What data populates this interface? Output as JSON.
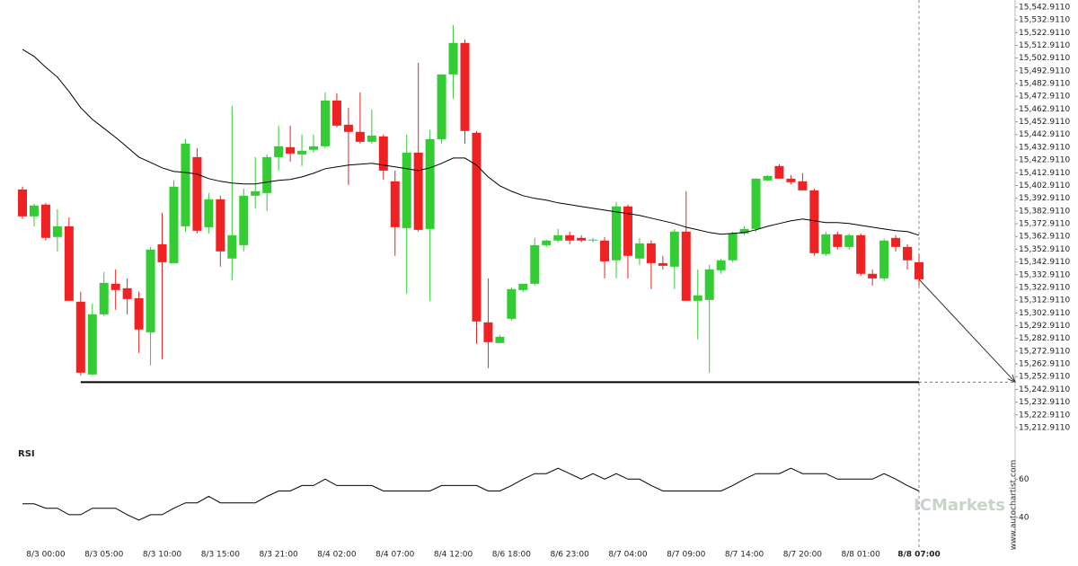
{
  "chart_data": [
    {
      "type": "candlestick",
      "categories": [
        null,
        null,
        "8/3 00:00",
        null,
        null,
        null,
        null,
        "8/3 05:00",
        null,
        null,
        null,
        null,
        "8/3 10:00",
        null,
        null,
        null,
        null,
        "8/3 15:00",
        null,
        null,
        null,
        null,
        "8/3 21:00",
        null,
        null,
        null,
        null,
        "8/4 02:00",
        null,
        null,
        null,
        null,
        "8/4 07:00",
        null,
        null,
        null,
        null,
        "8/4 12:00",
        null,
        null,
        null,
        null,
        "8/6 18:00",
        null,
        null,
        null,
        null,
        "8/6 23:00",
        null,
        null,
        null,
        null,
        "8/7 04:00",
        null,
        null,
        null,
        null,
        "8/7 09:00",
        null,
        null,
        null,
        null,
        "8/7 14:00",
        null,
        null,
        null,
        null,
        "8/7 20:00",
        null,
        null,
        null,
        null,
        "8/8 01:00",
        null,
        null,
        null,
        null,
        "8/8 07:00"
      ],
      "open": [
        15399.8,
        15378.7,
        15387.9,
        15362.5,
        15370.9,
        15311.7,
        15254.6,
        15301.8,
        15325.8,
        15322.3,
        15314.5,
        15287.7,
        15356.8,
        15342.0,
        15370.9,
        15425.2,
        15370.2,
        15392.1,
        15345.6,
        15356.1,
        15394.9,
        15397.0,
        15425.2,
        15433.0,
        15427.3,
        15430.9,
        15433.7,
        15469.6,
        15450.6,
        15445.0,
        15437.2,
        15441.4,
        15406.2,
        15369.5,
        15428.7,
        15368.8,
        15439.3,
        15490.1,
        15514.8,
        15444.3,
        15295.5,
        15279.3,
        15298.3,
        15320.9,
        15325.8,
        15356.1,
        15359.7,
        15363.9,
        15361.8,
        15359.7,
        15359.7,
        15344.2,
        15386.5,
        15345.6,
        15357.5,
        15342.0,
        15339.2,
        15366.7,
        15312.4,
        15313.1,
        15336.4,
        15344.2,
        15365.3,
        15368.8,
        15406.9,
        15418.2,
        15408.3,
        15406.2,
        15399.1,
        15349.1,
        15364.6,
        15354.7,
        15363.9,
        15333.6,
        15330.0,
        15361.8,
        15354.7,
        15342.7
      ],
      "high": [
        15402.0,
        15388.6,
        15389.3,
        15384.3,
        15378.0,
        15319.5,
        15310.3,
        15335.0,
        15337.1,
        15330.0,
        15319.5,
        15354.7,
        15381.5,
        15406.9,
        15439.3,
        15432.3,
        15397.0,
        15394.9,
        15465.4,
        15400.5,
        15425.2,
        15427.3,
        15449.9,
        15449.9,
        15442.9,
        15442.9,
        15476.0,
        15475.3,
        15464.0,
        15476.0,
        15462.6,
        15442.9,
        15414.6,
        15442.9,
        15499.3,
        15446.4,
        15490.1,
        15528.9,
        15517.6,
        15445.7,
        15330.0,
        15285.6,
        15323.0,
        15325.8,
        15361.8,
        15360.4,
        15368.8,
        15366.7,
        15363.9,
        15361.8,
        15362.5,
        15390.0,
        15387.9,
        15361.8,
        15359.7,
        15347.7,
        15368.8,
        15398.4,
        15337.1,
        15340.6,
        15345.6,
        15366.7,
        15370.9,
        15408.3,
        15411.1,
        15419.6,
        15411.1,
        15412.5,
        15400.5,
        15366.7,
        15366.7,
        15365.3,
        15365.3,
        15337.1,
        15361.1,
        15363.9,
        15356.8,
        15349.1
      ],
      "low": [
        15376.6,
        15370.9,
        15359.7,
        15351.2,
        15312.4,
        15253.9,
        15253.9,
        15300.4,
        15305.4,
        15301.8,
        15271.5,
        15261.7,
        15266.6,
        15342.0,
        15366.7,
        15365.3,
        15365.3,
        15339.2,
        15328.6,
        15351.2,
        15385.0,
        15382.9,
        15414.6,
        15421.7,
        15418.2,
        15428.7,
        15432.3,
        15448.5,
        15403.4,
        15435.8,
        15435.8,
        15407.6,
        15347.7,
        15318.1,
        15366.7,
        15312.4,
        15435.8,
        15471.1,
        15435.8,
        15278.6,
        15259.6,
        15279.3,
        15296.9,
        15319.5,
        15324.4,
        15354.7,
        15358.3,
        15356.8,
        15358.3,
        15358.3,
        15330.0,
        15330.0,
        15330.0,
        15340.6,
        15321.6,
        15337.1,
        15321.6,
        15312.4,
        15282.1,
        15256.0,
        15333.6,
        15342.7,
        15363.9,
        15366.7,
        15406.2,
        15408.3,
        15404.1,
        15400.5,
        15347.7,
        15347.7,
        15352.6,
        15352.6,
        15332.2,
        15324.4,
        15327.9,
        15351.2,
        15337.1,
        15324.4
      ],
      "close": [
        15378.7,
        15387.2,
        15361.8,
        15370.9,
        15312.4,
        15256.0,
        15301.8,
        15326.5,
        15320.9,
        15313.8,
        15289.9,
        15352.6,
        15342.7,
        15402.0,
        15435.8,
        15367.4,
        15392.1,
        15351.2,
        15363.9,
        15394.9,
        15398.4,
        15425.2,
        15433.7,
        15428.0,
        15430.2,
        15433.7,
        15469.6,
        15449.9,
        15445.0,
        15437.2,
        15442.1,
        15414.6,
        15370.2,
        15428.7,
        15368.1,
        15439.3,
        15490.1,
        15514.8,
        15445.7,
        15296.2,
        15280.0,
        15284.2,
        15321.6,
        15325.8,
        15356.1,
        15359.7,
        15363.9,
        15359.7,
        15359.7,
        15360.4,
        15343.4,
        15386.5,
        15347.7,
        15357.5,
        15342.0,
        15339.9,
        15366.7,
        15312.4,
        15316.7,
        15337.1,
        15344.2,
        15365.3,
        15368.8,
        15408.3,
        15410.4,
        15408.3,
        15405.5,
        15399.1,
        15349.8,
        15364.6,
        15354.7,
        15363.9,
        15333.6,
        15330.0,
        15359.7,
        15354.7,
        15344.2,
        15329.3
      ],
      "up_color": "#33cc33",
      "down_color": "#ee2222",
      "ma": {
        "color": "#000000",
        "values": [
          15509.8,
          15504.2,
          15495.7,
          15488.0,
          15476.7,
          15464.0,
          15454.8,
          15447.8,
          15440.7,
          15433.0,
          15425.2,
          15421.0,
          15416.8,
          15413.9,
          15413.2,
          15411.8,
          15408.3,
          15406.2,
          15404.8,
          15404.1,
          15404.1,
          15405.5,
          15406.9,
          15407.6,
          15409.7,
          15412.5,
          15416.1,
          15417.5,
          15418.9,
          15419.6,
          15420.3,
          15418.9,
          15417.5,
          15416.1,
          15414.6,
          15416.8,
          15420.3,
          15424.5,
          15424.5,
          15418.9,
          15409.7,
          15402.7,
          15398.4,
          15394.9,
          15392.8,
          15391.4,
          15389.3,
          15387.9,
          15386.4,
          15385.0,
          15383.6,
          15382.2,
          15380.8,
          15379.4,
          15377.3,
          15375.2,
          15373.1,
          15370.2,
          15368.1,
          15366.0,
          15364.6,
          15365.3,
          15366.0,
          15368.1,
          15370.9,
          15373.1,
          15375.2,
          15376.6,
          15375.2,
          15373.8,
          15373.8,
          15373.1,
          15371.6,
          15370.2,
          15368.8,
          15367.4,
          15366.7,
          15363.9
        ]
      },
      "support": 15248.6,
      "ylim": [
        15203,
        15548.5
      ],
      "yticks": [
        {
          "value": 15212.911,
          "label": "15,212.9110"
        },
        {
          "value": 15222.911,
          "label": "15,222.9110"
        },
        {
          "value": 15232.911,
          "label": "15,232.9110"
        },
        {
          "value": 15242.911,
          "label": "15,242.9110"
        },
        {
          "value": 15252.911,
          "label": "15,252.9110"
        },
        {
          "value": 15262.911,
          "label": "15,262.9110"
        },
        {
          "value": 15272.911,
          "label": "15,272.9110"
        },
        {
          "value": 15282.911,
          "label": "15,282.9110"
        },
        {
          "value": 15292.911,
          "label": "15,292.9110"
        },
        {
          "value": 15302.911,
          "label": "15,302.9110"
        },
        {
          "value": 15312.911,
          "label": "15,312.9110"
        },
        {
          "value": 15322.911,
          "label": "15,322.9110"
        },
        {
          "value": 15332.911,
          "label": "15,332.9110"
        },
        {
          "value": 15342.911,
          "label": "15,342.9110"
        },
        {
          "value": 15352.911,
          "label": "15,352.9110"
        },
        {
          "value": 15362.911,
          "label": "15,362.9110"
        },
        {
          "value": 15372.911,
          "label": "15,372.9110"
        },
        {
          "value": 15382.911,
          "label": "15,382.9110"
        },
        {
          "value": 15392.911,
          "label": "15,392.9110"
        },
        {
          "value": 15402.911,
          "label": "15,402.9110"
        },
        {
          "value": 15412.911,
          "label": "15,412.9110"
        },
        {
          "value": 15422.911,
          "label": "15,422.9110"
        },
        {
          "value": 15432.911,
          "label": "15,432.9110"
        },
        {
          "value": 15442.911,
          "label": "15,442.9110"
        },
        {
          "value": 15452.911,
          "label": "15,452.9110"
        },
        {
          "value": 15462.911,
          "label": "15,462.9110"
        },
        {
          "value": 15472.911,
          "label": "15,472.9110"
        },
        {
          "value": 15482.911,
          "label": "15,482.9110"
        },
        {
          "value": 15492.911,
          "label": "15,492.9110"
        },
        {
          "value": 15502.911,
          "label": "15,502.9110"
        },
        {
          "value": 15512.911,
          "label": "15,512.9110"
        },
        {
          "value": 15522.911,
          "label": "15,522.9110"
        },
        {
          "value": 15532.911,
          "label": "15,532.9110"
        },
        {
          "value": 15542.911,
          "label": "15,542.9110"
        }
      ]
    },
    {
      "type": "line",
      "title": "RSI",
      "color": "#000000",
      "values": [
        47.1,
        47.1,
        44.8,
        44.8,
        41.4,
        41.4,
        44.8,
        44.8,
        44.8,
        41.4,
        38.6,
        41.4,
        41.4,
        44.8,
        47.6,
        47.6,
        51.0,
        47.6,
        47.6,
        47.6,
        47.6,
        51.0,
        53.8,
        53.8,
        56.7,
        56.7,
        60,
        56.7,
        56.7,
        56.7,
        56.7,
        53.8,
        53.8,
        53.8,
        53.8,
        53.8,
        56.7,
        56.7,
        56.7,
        56.7,
        53.8,
        53.8,
        56.7,
        60,
        62.9,
        62.9,
        65.7,
        62.9,
        60,
        62.9,
        60,
        62.9,
        60,
        60,
        56.7,
        53.8,
        53.8,
        53.8,
        53.8,
        53.8,
        53.8,
        56.7,
        60,
        62.9,
        62.9,
        62.9,
        65.7,
        62.9,
        62.9,
        62.9,
        60,
        60,
        60,
        60,
        62.9,
        60,
        56.7,
        53.8
      ],
      "ylim": [
        24,
        78
      ],
      "yticks": [
        40,
        60
      ]
    }
  ],
  "brand": "ICMarkets",
  "site": "www.autochartist.com"
}
